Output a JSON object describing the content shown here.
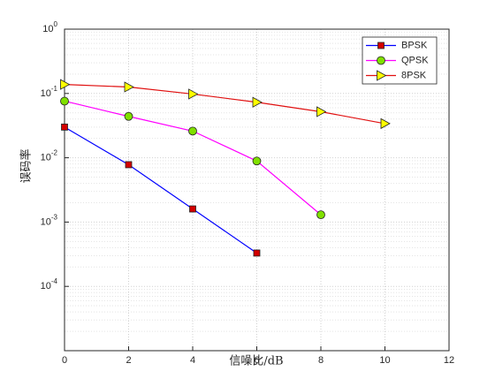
{
  "chart_data": {
    "type": "line",
    "xlabel": "信噪比/dB",
    "ylabel": "误码率",
    "x": [
      0,
      2,
      4,
      6,
      8,
      10
    ],
    "series": [
      {
        "name": "BPSK",
        "color": "#0000ff",
        "marker": "square",
        "marker_color": "#d40000",
        "values": [
          0.03,
          0.0078,
          0.0016,
          0.00033,
          null,
          null
        ]
      },
      {
        "name": "QPSK",
        "color": "#ff00ff",
        "marker": "circle",
        "marker_color": "#80e000",
        "values": [
          0.076,
          0.044,
          0.026,
          0.0089,
          0.0013,
          null
        ]
      },
      {
        "name": "8PSK",
        "color": "#e01010",
        "marker": "triangle-right",
        "marker_color": "#ffff00",
        "values": [
          0.138,
          0.126,
          0.098,
          0.073,
          0.052,
          0.034
        ]
      }
    ],
    "xlim": [
      0,
      12
    ],
    "xticks": [
      0,
      2,
      4,
      6,
      8,
      10,
      12
    ],
    "ylim": [
      1e-05,
      1
    ],
    "yscale": "log",
    "yticks": [
      {
        "value": 0.0001,
        "label": "10",
        "exponent": "-4"
      },
      {
        "value": 0.001,
        "label": "10",
        "exponent": "-3"
      },
      {
        "value": 0.01,
        "label": "10",
        "exponent": "-2"
      },
      {
        "value": 0.1,
        "label": "10",
        "exponent": "-1"
      },
      {
        "value": 1,
        "label": "10",
        "exponent": "0"
      }
    ],
    "grid": true,
    "minor_grid": true,
    "legend": "northeast"
  }
}
